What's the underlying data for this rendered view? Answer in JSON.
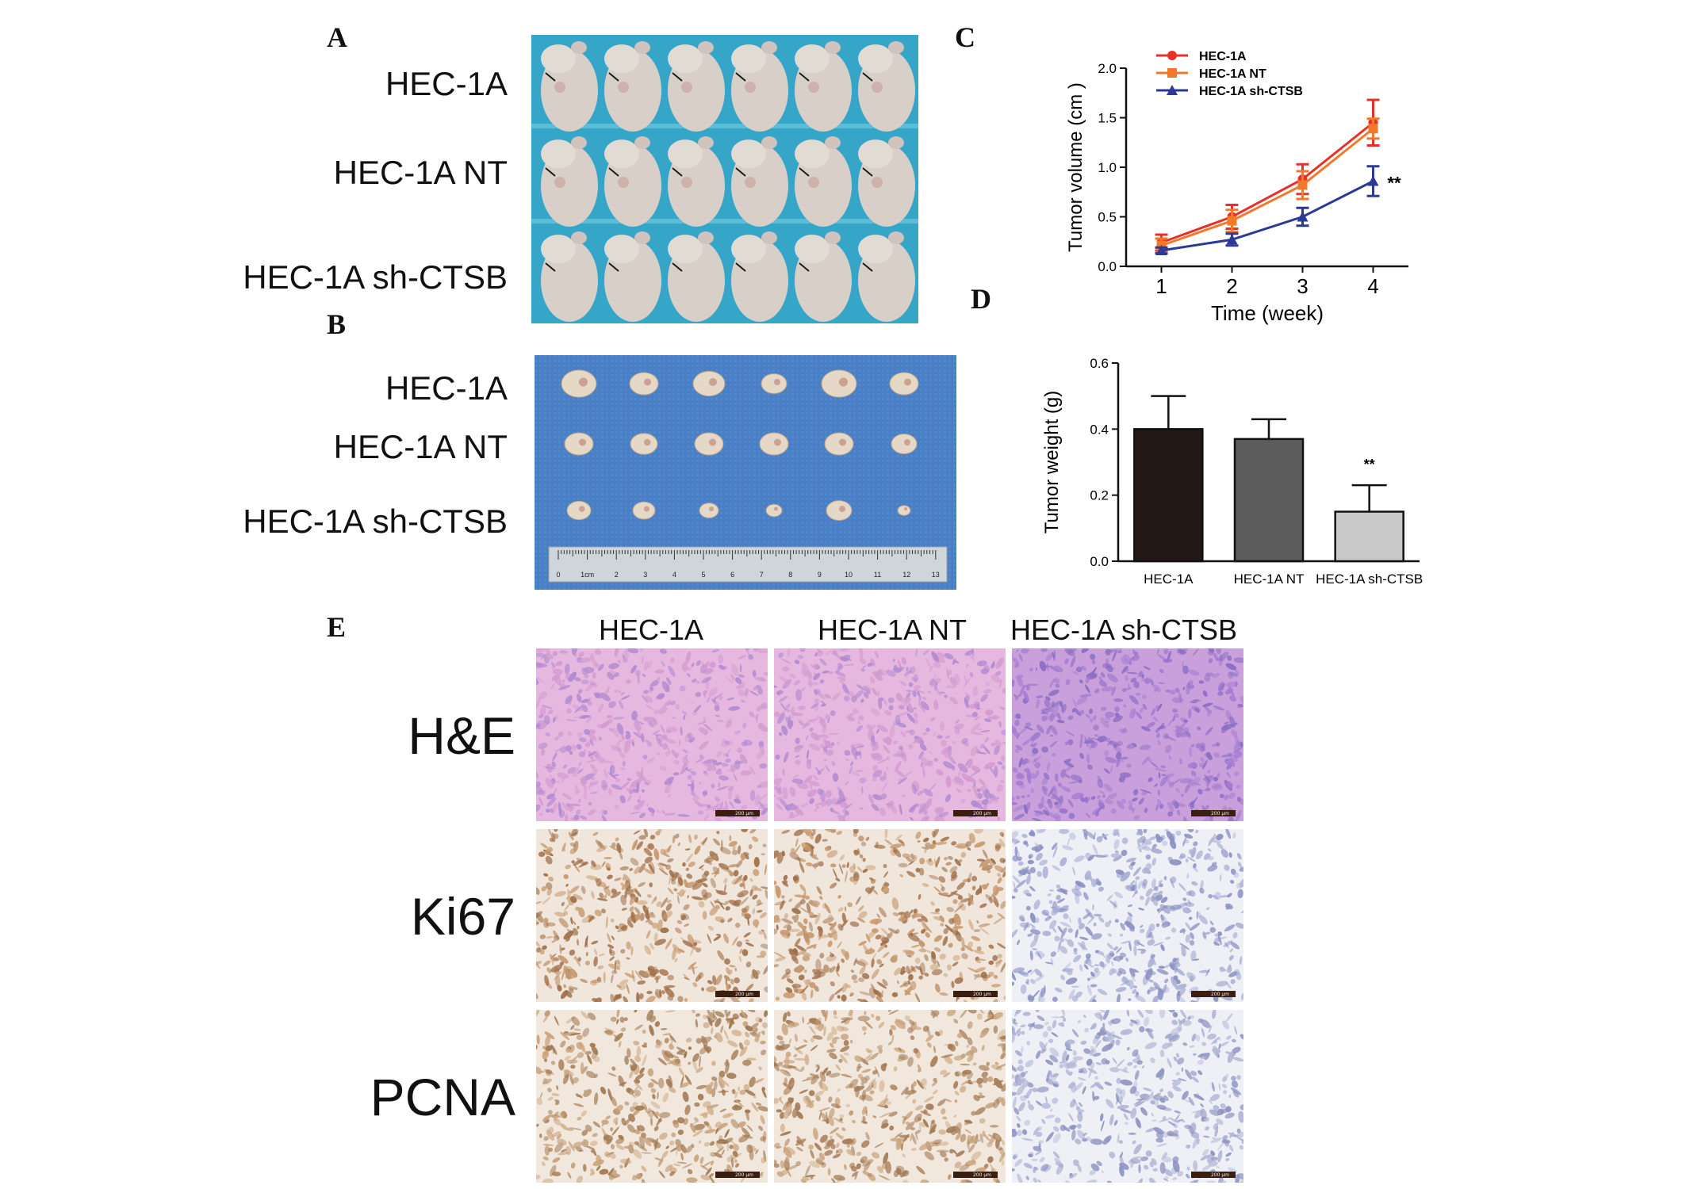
{
  "panel_letters": {
    "a": "A",
    "b": "B",
    "c": "C",
    "d": "D",
    "e": "E"
  },
  "groups": [
    "HEC-1A",
    "HEC-1A NT",
    "HEC-1A sh-CTSB"
  ],
  "panel_a": {
    "row_labels": [
      "HEC-1A",
      "HEC-1A NT",
      "HEC-1A sh-CTSB"
    ]
  },
  "panel_b": {
    "row_labels": [
      "HEC-1A",
      "HEC-1A NT",
      "HEC-1A sh-CTSB"
    ],
    "ruler_labels": [
      "0",
      "1cm",
      "2",
      "3",
      "4",
      "5",
      "6",
      "7",
      "8",
      "9",
      "10",
      "11",
      "12",
      "13"
    ]
  },
  "panel_e": {
    "column_headers": [
      "HEC-1A",
      "HEC-1A NT",
      "HEC-1A sh-CTSB"
    ],
    "row_labels": [
      "H&E",
      "Ki67",
      "PCNA"
    ],
    "scale_bar_label": "200 μm"
  },
  "chart_data": [
    {
      "panel": "C",
      "type": "line",
      "xlabel": "Time (week)",
      "ylabel": "Tumor volume (cm )",
      "x": [
        1,
        2,
        3,
        4
      ],
      "xticks": [
        "1",
        "2",
        "3",
        "4"
      ],
      "yticks": [
        "0.0",
        "0.5",
        "1.0",
        "1.5",
        "2.0"
      ],
      "ylim": [
        0,
        2.0
      ],
      "legend_position": "top-left",
      "grid": false,
      "annotation": "**",
      "series": [
        {
          "name": "HEC-1A",
          "color": "#e8302a",
          "marker": "circle",
          "values": [
            0.24,
            0.5,
            0.88,
            1.45
          ],
          "errors": [
            0.08,
            0.12,
            0.15,
            0.23
          ]
        },
        {
          "name": "HEC-1A NT",
          "color": "#f2792b",
          "marker": "square",
          "values": [
            0.21,
            0.46,
            0.82,
            1.39
          ],
          "errors": [
            0.07,
            0.11,
            0.14,
            0.1
          ]
        },
        {
          "name": "HEC-1A sh-CTSB",
          "color": "#2b3a94",
          "marker": "triangle",
          "values": [
            0.16,
            0.27,
            0.5,
            0.86
          ],
          "errors": [
            0.03,
            0.06,
            0.09,
            0.15
          ]
        }
      ]
    },
    {
      "panel": "D",
      "type": "bar",
      "ylabel": "Tumor weight (g)",
      "categories": [
        "HEC-1A",
        "HEC-1A NT",
        "HEC-1A sh-CTSB"
      ],
      "values": [
        0.4,
        0.37,
        0.15
      ],
      "errors": [
        0.1,
        0.06,
        0.08
      ],
      "colors": [
        "#231815",
        "#5c5c5c",
        "#c9c9c9"
      ],
      "yticks": [
        "0.0",
        "0.2",
        "0.4",
        "0.6"
      ],
      "ylim": [
        0,
        0.6
      ],
      "grid": false,
      "annotation": "**"
    }
  ]
}
